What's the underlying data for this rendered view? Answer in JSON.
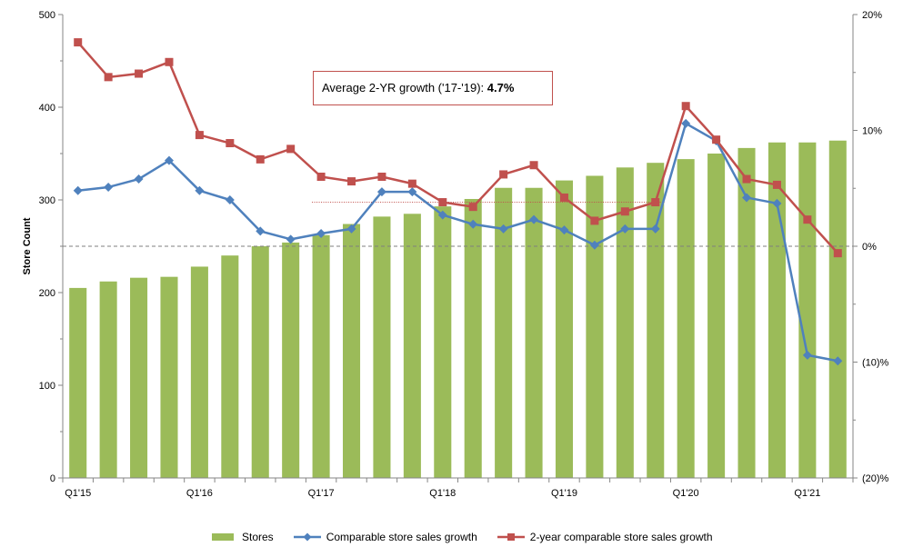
{
  "chart_data": {
    "type": "bar+line",
    "title": "",
    "ylabel": "Store Count",
    "ylim": [
      0,
      500
    ],
    "yticks": [
      0,
      100,
      200,
      300,
      400,
      500
    ],
    "y2lim": [
      -20,
      20
    ],
    "y2ticks": [
      {
        "value": 20,
        "label": "20%"
      },
      {
        "value": 10,
        "label": "10%"
      },
      {
        "value": 0,
        "label": "0%"
      },
      {
        "value": -10,
        "label": "(10)%"
      },
      {
        "value": -20,
        "label": "(20)%"
      }
    ],
    "categories": [
      "Q1'15",
      "Q2'15",
      "Q3'15",
      "Q4'15",
      "Q1'16",
      "Q2'16",
      "Q3'16",
      "Q4'16",
      "Q1'17",
      "Q2'17",
      "Q3'17",
      "Q4'17",
      "Q1'18",
      "Q2'18",
      "Q3'18",
      "Q4'18",
      "Q1'19",
      "Q2'19",
      "Q3'19",
      "Q4'19",
      "Q1'20",
      "Q2'20",
      "Q3'20",
      "Q4'20",
      "Q1'21",
      "Q2'21"
    ],
    "xtick_labels": [
      {
        "index": 0,
        "label": "Q1'15"
      },
      {
        "index": 4,
        "label": "Q1'16"
      },
      {
        "index": 8,
        "label": "Q1'17"
      },
      {
        "index": 12,
        "label": "Q1'18"
      },
      {
        "index": 16,
        "label": "Q1'19"
      },
      {
        "index": 20,
        "label": "Q1'20"
      },
      {
        "index": 24,
        "label": "Q1'21"
      }
    ],
    "series": [
      {
        "name": "Stores",
        "type": "bar",
        "axis": "left",
        "color": "#9bbb59",
        "values": [
          205,
          212,
          216,
          217,
          228,
          240,
          250,
          254,
          262,
          274,
          282,
          285,
          293,
          301,
          313,
          313,
          321,
          326,
          335,
          340,
          344,
          350,
          356,
          362,
          362,
          364
        ]
      },
      {
        "name": "Comparable store sales growth",
        "type": "line",
        "axis": "right",
        "color": "#4f81bd",
        "marker": "diamond",
        "values": [
          4.8,
          5.1,
          5.8,
          7.4,
          4.8,
          4.0,
          1.3,
          0.6,
          1.1,
          1.5,
          4.7,
          4.7,
          2.7,
          1.9,
          1.5,
          2.3,
          1.4,
          0.1,
          1.5,
          1.5,
          10.6,
          9.1,
          4.2,
          3.7,
          -9.4,
          -9.9
        ]
      },
      {
        "name": "2-year comparable store sales growth",
        "type": "line",
        "axis": "right",
        "color": "#c0504d",
        "marker": "square",
        "values": [
          17.6,
          14.6,
          14.9,
          15.9,
          9.6,
          8.9,
          7.5,
          8.4,
          6.0,
          5.6,
          6.0,
          5.4,
          3.8,
          3.4,
          6.2,
          7.0,
          4.2,
          2.2,
          3.0,
          3.8,
          12.1,
          9.2,
          5.8,
          5.3,
          2.3,
          -0.6
        ]
      }
    ],
    "reference_lines": [
      {
        "kind": "dashed",
        "axis": "right",
        "value": 0
      },
      {
        "kind": "dotted",
        "axis": "right",
        "value": 3.8,
        "from_index": 8,
        "to_index": 19
      }
    ],
    "annotation": {
      "text": "Average 2-YR growth ('17-'19): ",
      "value": "4.7%"
    },
    "legend_position": "bottom"
  }
}
